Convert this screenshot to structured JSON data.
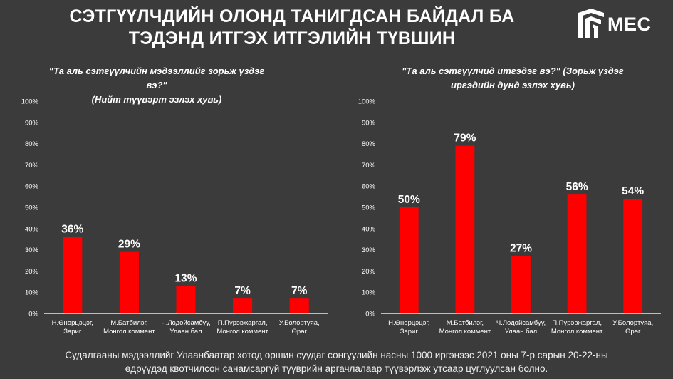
{
  "header": {
    "title_line1": "СЭТГҮҮЛЧДИЙН ОЛОНД ТАНИГДСАН БАЙДАЛ БА",
    "title_line2": "ТЭДЭНД ИТГЭХ ИТГЭЛИЙН ТҮВШИН",
    "logo_text": "MEC"
  },
  "chart_data": [
    {
      "type": "bar",
      "title_line1": "\"Та аль сэтгүүлчийн мэдээллийг зорьж үздэг вэ?\"",
      "title_line2": "(Нийт түүвэрт эзлэх хувь)",
      "categories": [
        [
          "Н.Өнөрцэцэг,",
          "Зариг"
        ],
        [
          "М.Батбилэг,",
          "Монгол коммент"
        ],
        [
          "Ч.Лодойсамбуу,",
          "Улаан бал"
        ],
        [
          "П.Пүрэвжаргал,",
          "Монгол коммент"
        ],
        [
          "У.Болортуяа,",
          "Өрөг"
        ]
      ],
      "values": [
        36,
        29,
        13,
        7,
        7
      ],
      "data_labels": [
        "36%",
        "29%",
        "13%",
        "7%",
        "7%"
      ],
      "ylim": [
        0,
        100
      ],
      "yticks": [
        "0%",
        "10%",
        "20%",
        "30%",
        "40%",
        "50%",
        "60%",
        "70%",
        "80%",
        "90%",
        "100%"
      ],
      "grid": false,
      "bar_color": "#ff0000"
    },
    {
      "type": "bar",
      "title_line1": "\"Та аль сэтгүүлчид итгэдэг вэ?\" (Зорьж үздэг",
      "title_line2": "иргэдийн дунд эзлэх хувь)",
      "categories": [
        [
          "Н.Өнөрцэцэг,",
          "Зариг"
        ],
        [
          "М.Батбилэг,",
          "Монгол коммент"
        ],
        [
          "Ч.Лодойсамбуу,",
          "Улаан бал"
        ],
        [
          "П.Пүрэвжаргал,",
          "Монгол коммент"
        ],
        [
          "У.Болортуяа,",
          "Өрөг"
        ]
      ],
      "values": [
        50,
        79,
        27,
        56,
        54
      ],
      "data_labels": [
        "50%",
        "79%",
        "27%",
        "56%",
        "54%"
      ],
      "ylim": [
        0,
        100
      ],
      "yticks": [
        "0%",
        "10%",
        "20%",
        "30%",
        "40%",
        "50%",
        "60%",
        "70%",
        "80%",
        "90%",
        "100%"
      ],
      "grid": false,
      "bar_color": "#ff0000"
    }
  ],
  "footnote": {
    "line1": "Судалгааны мэдээллийг Улаанбаатар хотод оршин суудаг сонгуулийн насны 1000 иргэнээс 2021 оны 7-р сарын 20-22-ны",
    "line2": "өдрүүдэд квотчилсон санамсаргүй түүврийн аргачлалаар түүвэрлэж утсаар цуглуулсан болно."
  }
}
